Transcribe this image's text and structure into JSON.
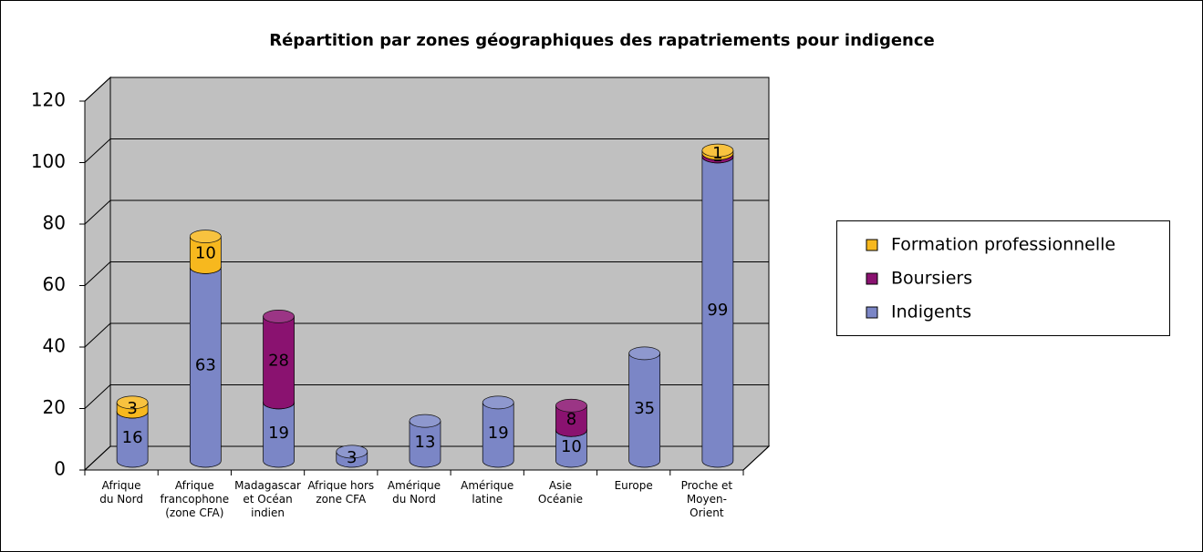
{
  "chart_data": {
    "type": "stacked-bar-3d",
    "title": "Répartition par zones géographiques des rapatriements pour indigence",
    "categories": [
      "Afrique\ndu Nord",
      "Afrique\nfrancophone\n(zone CFA)",
      "Madagascar\net Océan\nindien",
      "Afrique hors\nzone CFA",
      "Amérique\ndu Nord",
      "Amérique\nlatine",
      "Asie\nOcéanie",
      "Europe",
      "Proche et\nMoyen-\nOrient"
    ],
    "series": [
      {
        "name": "Indigents",
        "color": "#7b86c6",
        "values": [
          16,
          63,
          19,
          3,
          13,
          19,
          10,
          35,
          99
        ]
      },
      {
        "name": "Boursiers",
        "color": "#8a1270",
        "values": [
          null,
          null,
          28,
          null,
          null,
          null,
          8,
          null,
          1
        ]
      },
      {
        "name": "Formation professionnelle",
        "color": "#f7b81e",
        "values": [
          3,
          10,
          null,
          null,
          null,
          null,
          null,
          null,
          1
        ]
      }
    ],
    "ylim": [
      0,
      120
    ],
    "yticks": [
      0,
      20,
      40,
      60,
      80,
      100,
      120
    ],
    "grid": true,
    "legend": "right"
  }
}
